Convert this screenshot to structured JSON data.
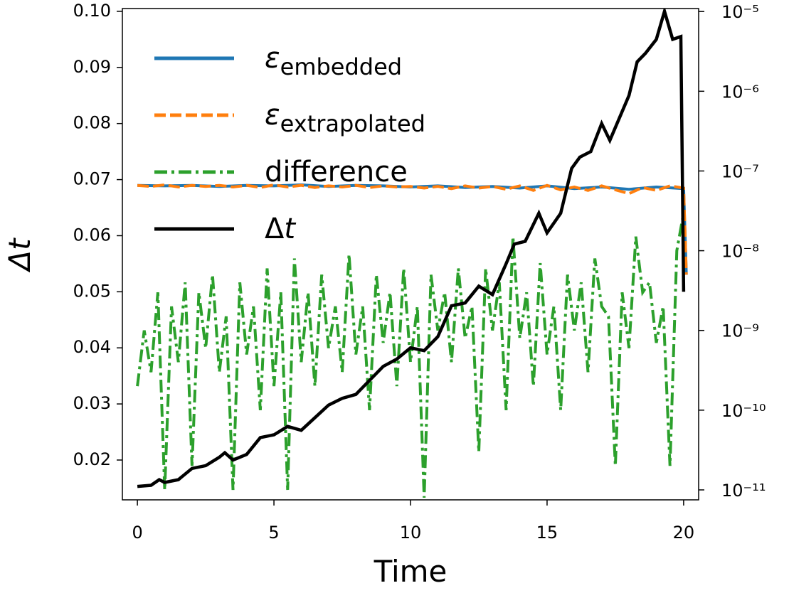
{
  "chart_data": {
    "type": "line",
    "xlabel": "Time",
    "ylabel": "Δt",
    "xlim": [
      -0.55,
      20.55
    ],
    "xticks": [
      0,
      5,
      10,
      15,
      20
    ],
    "ylim": [
      0.0129,
      0.1005
    ],
    "yticks": [
      0.02,
      0.03,
      0.04,
      0.05,
      0.06,
      0.07,
      0.08,
      0.09,
      {
        "value": 0.1,
        "label": "0.10"
      }
    ],
    "y2scale": "log",
    "y2lim": [
      7.5e-12,
      1.09e-05
    ],
    "y2ticks": [
      {
        "value": 1e-11,
        "label": "10⁻¹¹"
      },
      {
        "value": 1e-10,
        "label": "10⁻¹⁰"
      },
      {
        "value": 1e-09,
        "label": "10⁻⁹"
      },
      {
        "value": 1e-08,
        "label": "10⁻⁸"
      },
      {
        "value": 1e-07,
        "label": "10⁻⁷"
      },
      {
        "value": 1e-06,
        "label": "10⁻⁶"
      },
      {
        "value": 1e-05,
        "label": "10⁻⁵"
      }
    ],
    "legend": "upper left",
    "series": [
      {
        "name": "εembedded",
        "color": "#1f77b4",
        "dash": "solid",
        "axis": "y2",
        "x": [
          0,
          1,
          2,
          3,
          4,
          5,
          6,
          7,
          8,
          9,
          10,
          11,
          12,
          13,
          14,
          15,
          16,
          17,
          18,
          19,
          20,
          20.1
        ],
        "values": [
          6.6e-08,
          6.5e-08,
          6.6e-08,
          6.4e-08,
          6.6e-08,
          6.5e-08,
          6.7e-08,
          6.4e-08,
          6.6e-08,
          6.5e-08,
          6.3e-08,
          6.5e-08,
          6.2e-08,
          6.4e-08,
          6.1e-08,
          6.5e-08,
          6e-08,
          6.3e-08,
          5.9e-08,
          6.3e-08,
          6e-08,
          5e-09
        ]
      },
      {
        "name": "εextrapolated",
        "color": "#ff7f0e",
        "dash": "dashed",
        "axis": "y2",
        "x": [
          0,
          0.5,
          1,
          1.5,
          2,
          2.5,
          3,
          3.5,
          4,
          4.5,
          5,
          5.5,
          6,
          6.5,
          7,
          7.5,
          8,
          8.5,
          9,
          9.5,
          10,
          10.5,
          11,
          11.5,
          12,
          12.5,
          13,
          13.5,
          14,
          14.5,
          15,
          15.5,
          16,
          16.5,
          17,
          17.5,
          18,
          18.5,
          19,
          19.5,
          20,
          20.1
        ],
        "values": [
          6.6e-08,
          6.4e-08,
          6.7e-08,
          6.3e-08,
          6.6e-08,
          6.4e-08,
          6.6e-08,
          6.3e-08,
          6.6e-08,
          6.2e-08,
          6.7e-08,
          6.3e-08,
          6.6e-08,
          6.2e-08,
          6.5e-08,
          6.3e-08,
          6.6e-08,
          6.2e-08,
          6.5e-08,
          6.3e-08,
          6.4e-08,
          6.1e-08,
          6.4e-08,
          6e-08,
          6.5e-08,
          6.1e-08,
          6.4e-08,
          5.9e-08,
          6.5e-08,
          5.7e-08,
          6.6e-08,
          5.8e-08,
          6.3e-08,
          5.7e-08,
          6.5e-08,
          5.8e-08,
          5.2e-08,
          6.2e-08,
          5.7e-08,
          6.5e-08,
          6.1e-08,
          5e-09
        ]
      },
      {
        "name": "difference",
        "color": "#2ca02c",
        "dash": "dashdot",
        "axis": "y2",
        "x": [
          0,
          0.25,
          0.5,
          0.75,
          1,
          1.25,
          1.5,
          1.75,
          2,
          2.25,
          2.5,
          2.75,
          3,
          3.25,
          3.5,
          3.75,
          4,
          4.25,
          4.5,
          4.75,
          5,
          5.25,
          5.5,
          5.75,
          6,
          6.25,
          6.5,
          6.75,
          7,
          7.25,
          7.5,
          7.75,
          8,
          8.25,
          8.5,
          8.75,
          9,
          9.25,
          9.5,
          9.75,
          10,
          10.25,
          10.5,
          10.75,
          11,
          11.25,
          11.5,
          11.75,
          12,
          12.25,
          12.5,
          12.75,
          13,
          13.25,
          13.5,
          13.75,
          14,
          14.25,
          14.5,
          14.75,
          15,
          15.25,
          15.5,
          15.75,
          16,
          16.25,
          16.5,
          16.75,
          17,
          17.25,
          17.5,
          17.75,
          18,
          18.25,
          18.5,
          18.75,
          19,
          19.25,
          19.5,
          19.75,
          20
        ],
        "values": [
          2e-10,
          1e-09,
          3e-10,
          3e-09,
          1e-11,
          2e-09,
          4e-10,
          4e-09,
          2e-11,
          3e-09,
          6e-10,
          5e-09,
          3e-10,
          1.5e-09,
          1e-11,
          4e-09,
          5e-10,
          2e-09,
          1e-10,
          6e-09,
          2e-10,
          3e-09,
          1e-11,
          8e-09,
          4e-10,
          3e-09,
          2e-10,
          5e-09,
          6e-10,
          2e-09,
          3e-10,
          9e-09,
          5e-10,
          2e-09,
          1e-10,
          5e-09,
          7e-10,
          3e-09,
          2e-10,
          6e-09,
          4e-10,
          2e-09,
          8e-12,
          5e-09,
          1e-09,
          3e-09,
          4e-10,
          6e-09,
          8e-10,
          2e-09,
          3e-11,
          6e-09,
          1e-09,
          4e-09,
          1e-10,
          1.5e-08,
          8e-10,
          3e-09,
          2e-10,
          7e-09,
          5e-10,
          2e-09,
          1e-10,
          5e-09,
          1e-09,
          4e-09,
          3e-10,
          8e-09,
          2e-09,
          1.5e-09,
          2e-11,
          3e-09,
          6e-10,
          1.5e-08,
          3e-09,
          4e-09,
          7e-10,
          2e-09,
          2e-11,
          1e-08,
          3e-08
        ]
      },
      {
        "name": "Δt",
        "color": "#000000",
        "dash": "solid",
        "axis": "y",
        "x": [
          0,
          0.5,
          0.8,
          1.0,
          1.5,
          2.0,
          2.5,
          3.0,
          3.2,
          3.5,
          4.0,
          4.5,
          5.0,
          5.5,
          6,
          7,
          7.5,
          8,
          9,
          9.5,
          10,
          10.5,
          11,
          11.5,
          12,
          12.5,
          13,
          13.5,
          13.8,
          14.2,
          14.7,
          15,
          15.5,
          15.9,
          16.2,
          16.6,
          17,
          17.3,
          18,
          18.3,
          18.6,
          19,
          19.3,
          19.6,
          19.9,
          20
        ],
        "values": [
          0.0153,
          0.0155,
          0.0165,
          0.016,
          0.0165,
          0.0185,
          0.019,
          0.0205,
          0.0213,
          0.02,
          0.021,
          0.024,
          0.0245,
          0.026,
          0.0253,
          0.0298,
          0.031,
          0.0317,
          0.0367,
          0.038,
          0.04,
          0.0395,
          0.042,
          0.0475,
          0.048,
          0.051,
          0.0495,
          0.055,
          0.0585,
          0.059,
          0.064,
          0.0605,
          0.064,
          0.072,
          0.074,
          0.075,
          0.08,
          0.077,
          0.085,
          0.091,
          0.0925,
          0.095,
          0.1,
          0.095,
          0.0955,
          0.05
        ]
      }
    ]
  }
}
